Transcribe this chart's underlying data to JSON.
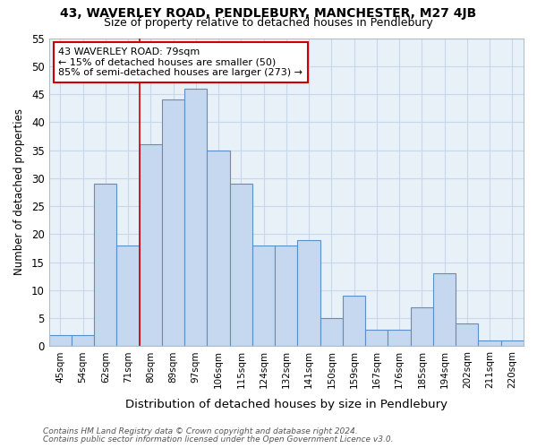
{
  "title1": "43, WAVERLEY ROAD, PENDLEBURY, MANCHESTER, M27 4JB",
  "title2": "Size of property relative to detached houses in Pendlebury",
  "xlabel": "Distribution of detached houses by size in Pendlebury",
  "ylabel": "Number of detached properties",
  "bar_labels": [
    "45sqm",
    "54sqm",
    "62sqm",
    "71sqm",
    "80sqm",
    "89sqm",
    "97sqm",
    "106sqm",
    "115sqm",
    "124sqm",
    "132sqm",
    "141sqm",
    "150sqm",
    "159sqm",
    "167sqm",
    "176sqm",
    "185sqm",
    "194sqm",
    "202sqm",
    "211sqm",
    "220sqm"
  ],
  "bar_values": [
    2,
    2,
    29,
    18,
    36,
    44,
    46,
    35,
    29,
    18,
    18,
    19,
    5,
    9,
    3,
    3,
    7,
    13,
    4,
    1,
    1
  ],
  "bar_color": "#c5d8ef",
  "bar_edge_color": "#5b8fc9",
  "vline_x_index": 4,
  "vline_color": "#cc0000",
  "annotation_line1": "43 WAVERLEY ROAD: 79sqm",
  "annotation_line2": "← 15% of detached houses are smaller (50)",
  "annotation_line3": "85% of semi-detached houses are larger (273) →",
  "annotation_box_color": "#ffffff",
  "annotation_box_edge": "#cc0000",
  "ylim": [
    0,
    55
  ],
  "yticks": [
    0,
    5,
    10,
    15,
    20,
    25,
    30,
    35,
    40,
    45,
    50,
    55
  ],
  "grid_color": "#c8d8ec",
  "bg_color": "#e8f0f8",
  "fig_bg_color": "#ffffff",
  "footer1": "Contains HM Land Registry data © Crown copyright and database right 2024.",
  "footer2": "Contains public sector information licensed under the Open Government Licence v3.0."
}
